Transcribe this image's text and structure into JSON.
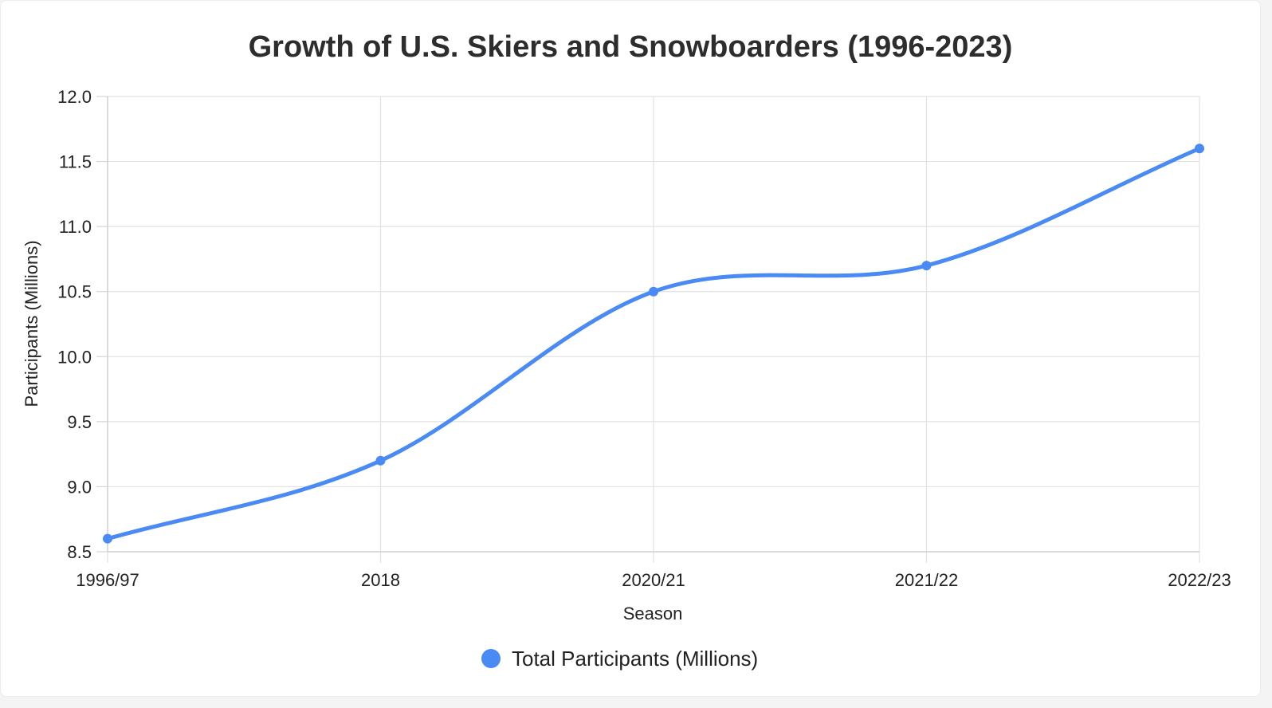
{
  "chart_data": {
    "type": "line",
    "title": "Growth of U.S. Skiers and Snowboarders (1996-2023)",
    "xlabel": "Season",
    "ylabel": "Participants (Millions)",
    "categories": [
      "1996/97",
      "2018",
      "2020/21",
      "2021/22",
      "2022/23"
    ],
    "series": [
      {
        "name": "Total Participants (Millions)",
        "values": [
          8.6,
          9.2,
          10.5,
          10.7,
          11.6
        ],
        "color": "#4a8af4"
      }
    ],
    "ylim": [
      8.5,
      12.0
    ],
    "yticks": [
      "8.5",
      "9.0",
      "9.5",
      "10.0",
      "10.5",
      "11.0",
      "11.5",
      "12.0"
    ],
    "grid": true,
    "legend": "bottom-center",
    "smooth": true
  }
}
